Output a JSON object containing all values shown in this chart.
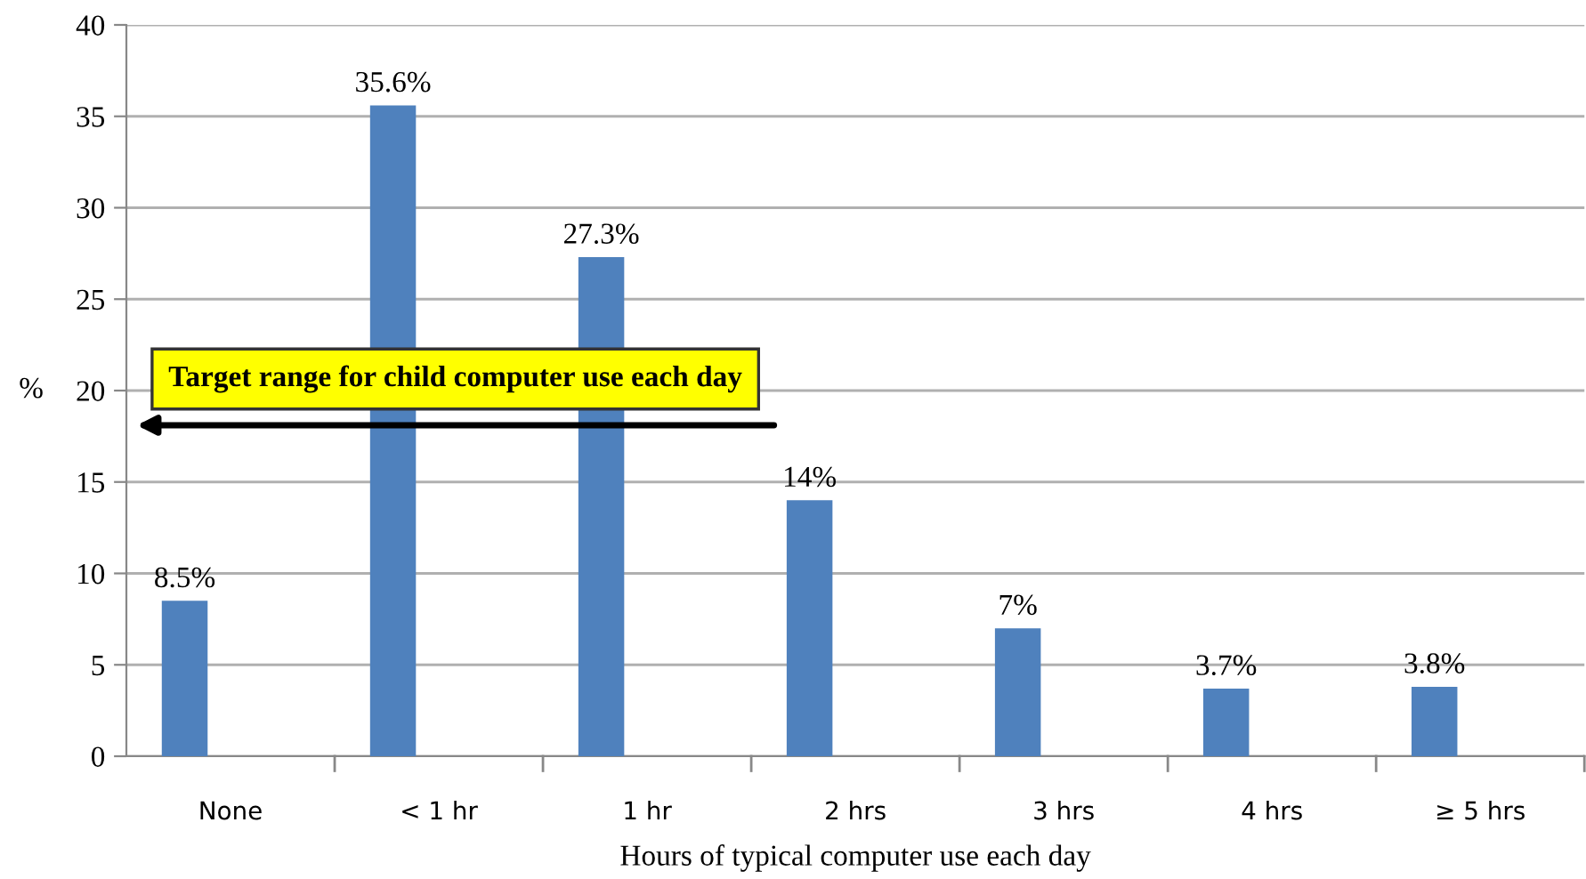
{
  "chart_data": {
    "type": "bar",
    "xlabel": "Hours of typical computer use each day",
    "ylabel": "%",
    "categories": [
      "None",
      "< 1 hr",
      "1 hr",
      "2 hrs",
      "3 hrs",
      "4 hrs",
      "≥ 5 hrs"
    ],
    "values": [
      8.5,
      35.6,
      27.3,
      14,
      7,
      3.7,
      3.8
    ],
    "value_labels": [
      "8.5%",
      "35.6%",
      "27.3%",
      "14%",
      "7%",
      "3.7%",
      "3.8%"
    ],
    "color": "#4f81bd",
    "ylim": [
      0,
      40
    ],
    "yticks": [
      0,
      5,
      10,
      15,
      20,
      25,
      30,
      35,
      40
    ],
    "grid": "y",
    "annotations": [
      "Target range for child computer use each day"
    ]
  }
}
